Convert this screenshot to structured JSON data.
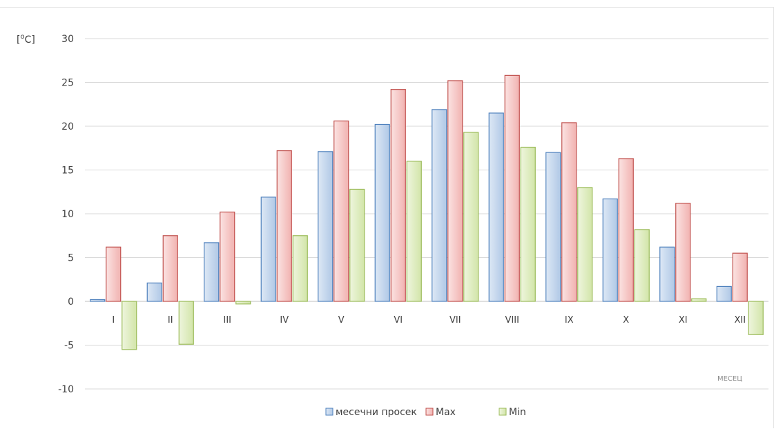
{
  "chart_data": {
    "type": "bar",
    "categories": [
      "I",
      "II",
      "III",
      "IV",
      "V",
      "VI",
      "VII",
      "VIII",
      "IX",
      "X",
      "XI",
      "XII"
    ],
    "series": [
      {
        "name": "месечни просек",
        "color": "#4f81bd",
        "values": [
          0.2,
          2.1,
          6.7,
          11.9,
          17.1,
          20.2,
          21.9,
          21.5,
          17.0,
          11.7,
          6.2,
          1.7
        ]
      },
      {
        "name": "Max",
        "color": "#c0504d",
        "values": [
          6.2,
          7.5,
          10.2,
          17.2,
          20.6,
          24.2,
          25.2,
          25.8,
          20.4,
          16.3,
          11.2,
          5.5
        ]
      },
      {
        "name": "Min",
        "color": "#9bbb59",
        "values": [
          -5.5,
          -4.9,
          -0.3,
          7.5,
          12.8,
          16.0,
          19.3,
          17.6,
          13.0,
          8.2,
          0.3,
          -3.8
        ]
      }
    ],
    "ylim": [
      -10,
      30
    ],
    "yticks": [
      "-10",
      "-5",
      "0",
      "5",
      "10",
      "15",
      "20",
      "25",
      "30"
    ],
    "ylabel_base": "[",
    "ylabel_sup": "o",
    "ylabel_rest": "C]",
    "xlabel": "МЕСЕЦ",
    "grid": true,
    "legend_position": "bottom"
  }
}
